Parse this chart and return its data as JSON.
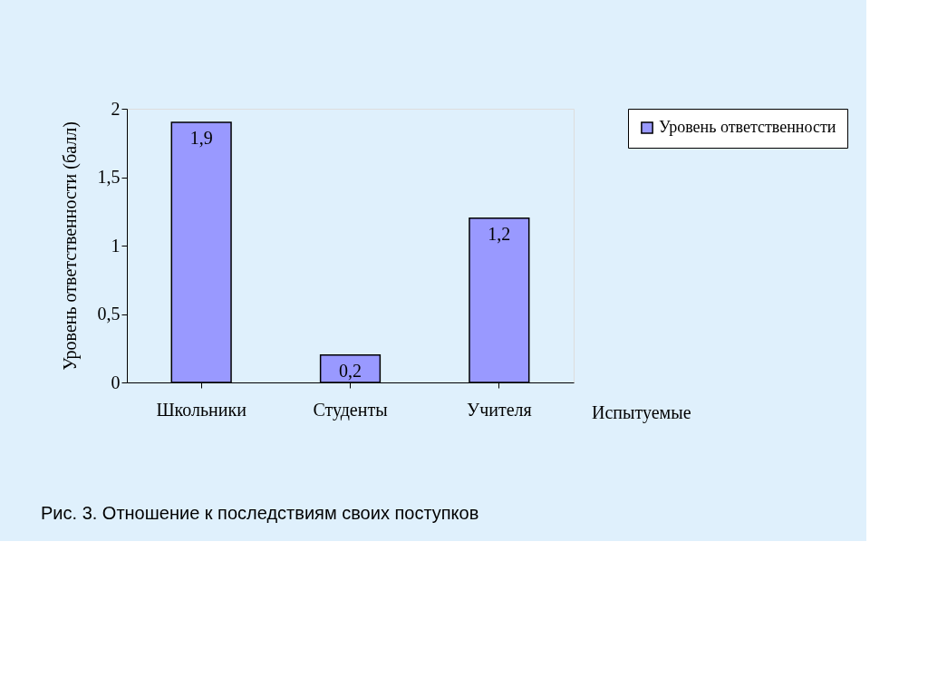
{
  "chart_data": {
    "type": "bar",
    "categories": [
      "Школьники",
      "Студенты",
      "Учителя"
    ],
    "series": [
      {
        "name": "Уровень ответственности",
        "color": "#9999ff",
        "values": [
          1.9,
          0.2,
          1.2
        ],
        "value_labels": [
          "1,9",
          "0,2",
          "1,2"
        ]
      }
    ],
    "ylabel": "Уровень ответственности (балл)",
    "xlabel": "Испытуемые",
    "ylim": [
      0,
      2
    ],
    "yticks": [
      0,
      {
        "value": 0.5,
        "label": "0,5"
      },
      1,
      {
        "value": 1.5,
        "label": "1,5"
      },
      2
    ],
    "legend": "top right",
    "grid": false,
    "annotations": [
      "Рис. 3.    Отношение к последствиям своих поступков"
    ]
  }
}
